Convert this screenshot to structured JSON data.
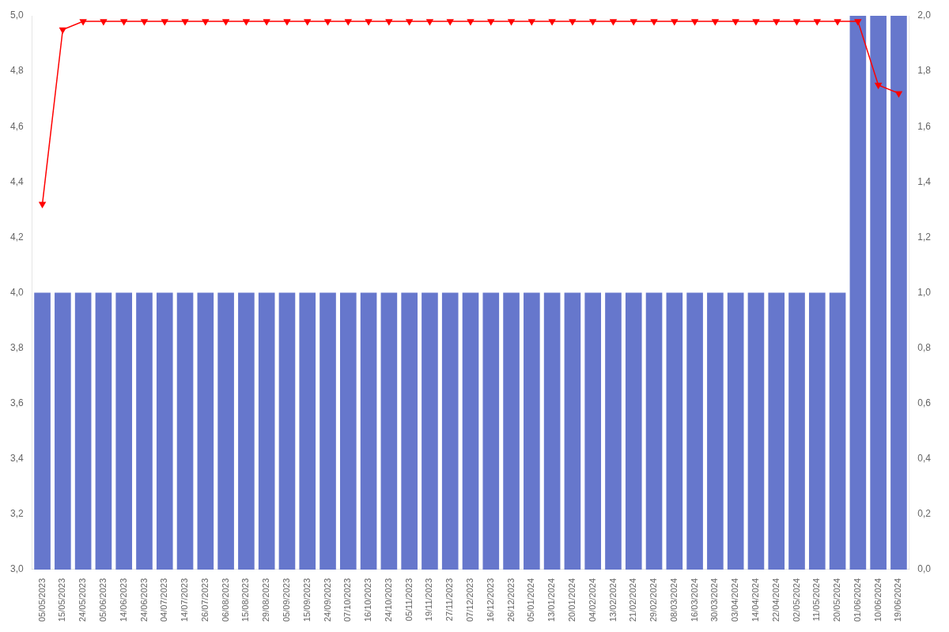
{
  "chart_data": {
    "type": "bar",
    "categories": [
      "05/05/2023",
      "15/05/2023",
      "24/05/2023",
      "05/06/2023",
      "14/06/2023",
      "24/06/2023",
      "04/07/2023",
      "14/07/2023",
      "26/07/2023",
      "06/08/2023",
      "15/08/2023",
      "29/08/2023",
      "05/09/2023",
      "15/09/2023",
      "24/09/2023",
      "07/10/2023",
      "16/10/2023",
      "24/10/2023",
      "05/11/2023",
      "19/11/2023",
      "27/11/2023",
      "07/12/2023",
      "16/12/2023",
      "26/12/2023",
      "05/01/2024",
      "13/01/2024",
      "20/01/2024",
      "04/02/2024",
      "13/02/2024",
      "21/02/2024",
      "29/02/2024",
      "08/03/2024",
      "16/03/2024",
      "30/03/2024",
      "03/04/2024",
      "14/04/2024",
      "22/04/2024",
      "02/05/2024",
      "11/05/2024",
      "20/05/2024",
      "01/06/2024",
      "10/06/2024",
      "19/06/2024"
    ],
    "series": [
      {
        "type": "bar",
        "color": "#6677CC",
        "values": [
          4.0,
          4.0,
          4.0,
          4.0,
          4.0,
          4.0,
          4.0,
          4.0,
          4.0,
          4.0,
          4.0,
          4.0,
          4.0,
          4.0,
          4.0,
          4.0,
          4.0,
          4.0,
          4.0,
          4.0,
          4.0,
          4.0,
          4.0,
          4.0,
          4.0,
          4.0,
          4.0,
          4.0,
          4.0,
          4.0,
          4.0,
          4.0,
          4.0,
          4.0,
          4.0,
          4.0,
          4.0,
          4.0,
          4.0,
          4.0,
          5.0,
          5.0,
          5.0
        ]
      },
      {
        "type": "line",
        "color": "#FF0000",
        "marker": "triangle_down",
        "values": [
          4.32,
          4.95,
          4.98,
          4.98,
          4.98,
          4.98,
          4.98,
          4.98,
          4.98,
          4.98,
          4.98,
          4.98,
          4.98,
          4.98,
          4.98,
          4.98,
          4.98,
          4.98,
          4.98,
          4.98,
          4.98,
          4.98,
          4.98,
          4.98,
          4.98,
          4.98,
          4.98,
          4.98,
          4.98,
          4.98,
          4.98,
          4.98,
          4.98,
          4.98,
          4.98,
          4.98,
          4.98,
          4.98,
          4.98,
          4.98,
          4.98,
          4.75,
          4.72
        ]
      }
    ],
    "ylim": [
      3.0,
      5.0
    ],
    "yticks": [
      {
        "value": 3.0,
        "label": "3,0"
      },
      {
        "value": 3.2,
        "label": "3,2"
      },
      {
        "value": 3.4,
        "label": "3,4"
      },
      {
        "value": 3.6,
        "label": "3,6"
      },
      {
        "value": 3.8,
        "label": "3,8"
      },
      {
        "value": 4.0,
        "label": "4,0"
      },
      {
        "value": 4.2,
        "label": "4,2"
      },
      {
        "value": 4.4,
        "label": "4,4"
      },
      {
        "value": 4.6,
        "label": "4,6"
      },
      {
        "value": 4.8,
        "label": "4,8"
      },
      {
        "value": 5.0,
        "label": "5,0"
      }
    ],
    "y2lim": [
      0,
      2.0
    ],
    "y2ticks": [
      {
        "value": 0,
        "label": "0,0"
      },
      {
        "value": 0.2,
        "label": "0,2"
      },
      {
        "value": 0.4,
        "label": "0,4"
      },
      {
        "value": 0.6,
        "label": "0,6"
      },
      {
        "value": 0.8,
        "label": "0,8"
      },
      {
        "value": 1.0,
        "label": "1,0"
      },
      {
        "value": 1.2,
        "label": "1,2"
      },
      {
        "value": 1.4,
        "label": "1,4"
      },
      {
        "value": 1.6,
        "label": "1,6"
      },
      {
        "value": 1.8,
        "label": "1,8"
      },
      {
        "value": 2.0,
        "label": "2,0"
      }
    ],
    "grid": false
  }
}
